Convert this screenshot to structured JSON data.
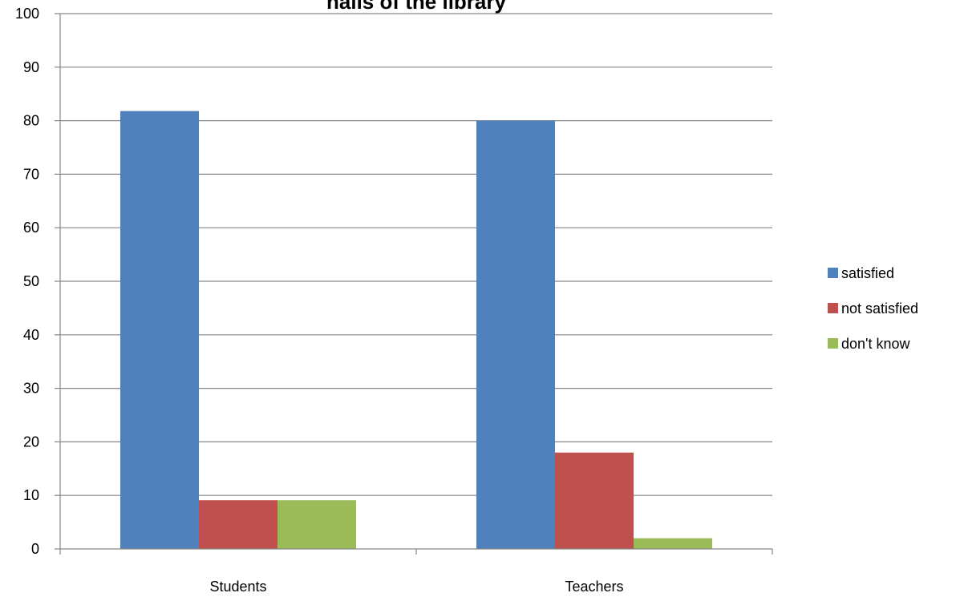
{
  "chart_data": {
    "type": "bar",
    "title": "halls of the library",
    "categories": [
      "Students",
      "Teachers"
    ],
    "series": [
      {
        "name": "satisfied",
        "color": "#4F81BD",
        "values": [
          81.8,
          80
        ]
      },
      {
        "name": "not satisfied",
        "color": "#C0504D",
        "values": [
          9.1,
          18
        ]
      },
      {
        "name": "don't know",
        "color": "#9BBB59",
        "values": [
          9.1,
          2
        ]
      }
    ],
    "yticks": [
      "0",
      "10",
      "20",
      "30",
      "40",
      "50",
      "60",
      "70",
      "80",
      "90",
      "100"
    ],
    "ylim": [
      0,
      100
    ],
    "xlabel": "",
    "ylabel": "",
    "grid": true,
    "legend_position": "right"
  }
}
